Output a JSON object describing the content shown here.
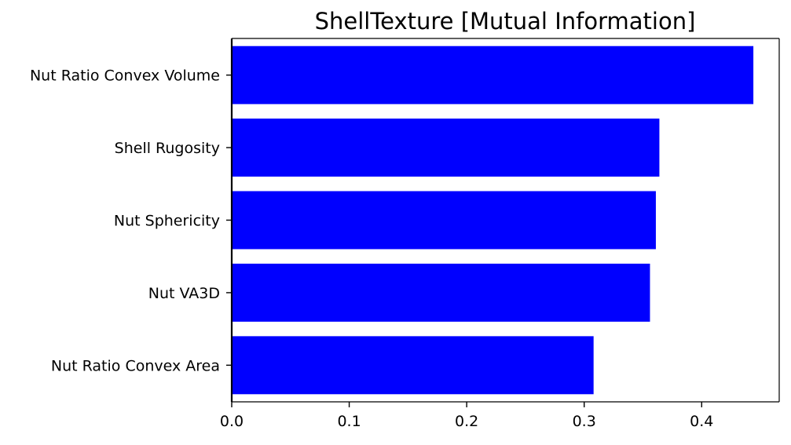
{
  "chart_data": {
    "type": "bar",
    "orientation": "horizontal",
    "title": "ShellTexture [Mutual Information]",
    "xlabel": "",
    "ylabel": "",
    "categories": [
      "Nut Ratio Convex Volume",
      "Shell Rugosity",
      "Nut Sphericity",
      "Nut VA3D",
      "Nut Ratio Convex Area"
    ],
    "values": [
      0.444,
      0.364,
      0.361,
      0.356,
      0.308
    ],
    "xlim": [
      0,
      0.466
    ],
    "xticks": [
      "0.0",
      "0.1",
      "0.2",
      "0.3",
      "0.4"
    ],
    "bar_color": "#0000ff",
    "grid": false,
    "legend": "none"
  }
}
